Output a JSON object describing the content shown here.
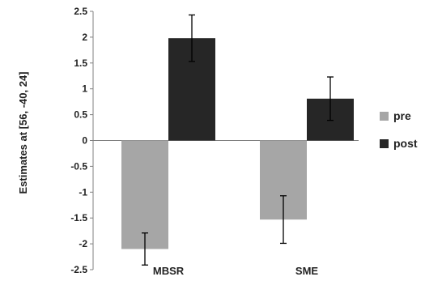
{
  "chart_data": {
    "type": "bar",
    "categories": [
      "MBSR",
      "SME"
    ],
    "series": [
      {
        "name": "pre",
        "color": "#a6a6a6",
        "values": [
          -2.1,
          -1.53
        ],
        "error": [
          0.31,
          0.46
        ]
      },
      {
        "name": "post",
        "color": "#262626",
        "values": [
          1.98,
          0.81
        ],
        "error": [
          0.45,
          0.42
        ]
      }
    ],
    "ylabel": "Estimates at [56, -40, 24]",
    "xlabel": "",
    "ylim": [
      -2.5,
      2.5
    ],
    "yticks": [
      -2.5,
      -2,
      -1.5,
      -1,
      -0.5,
      0,
      0.5,
      1,
      1.5,
      2,
      2.5
    ],
    "ytick_labels": [
      "-2.5",
      "-2",
      "-1.5",
      "-1",
      "-0.5",
      "0",
      "0.5",
      "1",
      "1.5",
      "2",
      "2.5"
    ],
    "grid": false,
    "legend_position": "right"
  }
}
